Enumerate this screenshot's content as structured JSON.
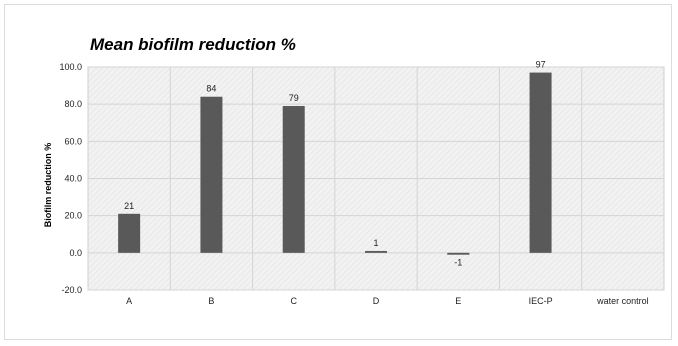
{
  "chart_data": {
    "type": "bar",
    "title": "Mean biofilm reduction %",
    "xlabel": "",
    "ylabel": "Biofilm reduction %",
    "categories": [
      "A",
      "B",
      "C",
      "D",
      "E",
      "IEC-P",
      "water control"
    ],
    "values": [
      21,
      84,
      79,
      1,
      -1,
      97,
      null
    ],
    "data_labels": [
      "21",
      "84",
      "79",
      "1",
      "-1",
      "97",
      ""
    ],
    "yticks": [
      "-20.0",
      "0.0",
      "20.0",
      "40.0",
      "60.0",
      "80.0",
      "100.0"
    ],
    "ylim": [
      -20,
      100
    ],
    "grid": true,
    "legend": "none",
    "colors": {
      "bar": "#595959",
      "plot_background": "#f2f2f2",
      "grid": "#d4d4d4"
    }
  }
}
